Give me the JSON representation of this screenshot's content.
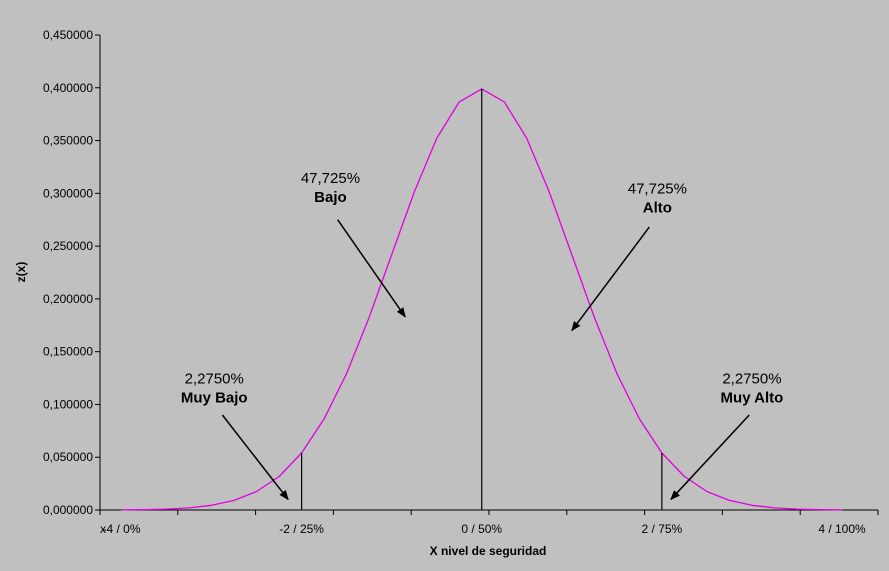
{
  "chart_data": {
    "type": "line",
    "xlabel": "X nivel de seguridad",
    "ylabel": "z(x)",
    "xlim": [
      -4,
      4
    ],
    "ylim": [
      0,
      0.45
    ],
    "grid": false,
    "legend": "none",
    "y_ticks": [
      {
        "value": 0.0,
        "label": "0,000000"
      },
      {
        "value": 0.05,
        "label": "0,050000"
      },
      {
        "value": 0.1,
        "label": "0,100000"
      },
      {
        "value": 0.15,
        "label": "0,150000"
      },
      {
        "value": 0.2,
        "label": "0,200000"
      },
      {
        "value": 0.25,
        "label": "0,250000"
      },
      {
        "value": 0.3,
        "label": "0,300000"
      },
      {
        "value": 0.35,
        "label": "0,350000"
      },
      {
        "value": 0.4,
        "label": "0,400000"
      },
      {
        "value": 0.45,
        "label": "0,450000"
      }
    ],
    "x_ticks": [
      {
        "value": -4,
        "label": "-4 / 0%"
      },
      {
        "value": -2,
        "label": "-2 / 25%"
      },
      {
        "value": 0,
        "label": "0 / 50%"
      },
      {
        "value": 2,
        "label": "2 / 75%"
      },
      {
        "value": 4,
        "label": "4 / 100%"
      }
    ],
    "axis_stray_label": "x",
    "series": [
      {
        "color": "#e000e0",
        "x": [
          -4,
          -3.75,
          -3.5,
          -3.25,
          -3,
          -2.75,
          -2.5,
          -2.25,
          -2,
          -1.75,
          -1.5,
          -1.25,
          -1,
          -0.75,
          -0.5,
          -0.25,
          0,
          0.25,
          0.5,
          0.75,
          1,
          1.25,
          1.5,
          1.75,
          2,
          2.25,
          2.5,
          2.75,
          3,
          3.25,
          3.5,
          3.75,
          4
        ],
        "y": [
          0.000134,
          0.000353,
          0.000873,
          0.002029,
          0.004432,
          0.009094,
          0.017528,
          0.03174,
          0.053991,
          0.086277,
          0.129518,
          0.182649,
          0.241971,
          0.301137,
          0.352065,
          0.386668,
          0.398942,
          0.386668,
          0.352065,
          0.301137,
          0.241971,
          0.182649,
          0.129518,
          0.086277,
          0.053991,
          0.03174,
          0.017528,
          0.009094,
          0.004432,
          0.002029,
          0.000873,
          0.000353,
          0.000134
        ]
      }
    ],
    "reference_lines": [
      {
        "x": -2,
        "y_top": 0.053991
      },
      {
        "x": 0,
        "y_top": 0.398942
      },
      {
        "x": 2,
        "y_top": 0.053991
      }
    ],
    "annotations": [
      {
        "id": "muy-bajo",
        "percent": "2,2750%",
        "name": "Muy Bajo",
        "text_x": -2.97,
        "text_y": 0.12,
        "arrow_from": [
          -2.88,
          0.09
        ],
        "arrow_to": [
          -2.15,
          0.01
        ]
      },
      {
        "id": "bajo",
        "percent": "47,725%",
        "name": "Bajo",
        "text_x": -1.68,
        "text_y": 0.31,
        "arrow_from": [
          -1.6,
          0.275
        ],
        "arrow_to": [
          -0.85,
          0.183
        ]
      },
      {
        "id": "alto",
        "percent": "47,725%",
        "name": "Alto",
        "text_x": 1.95,
        "text_y": 0.3,
        "arrow_from": [
          1.86,
          0.268
        ],
        "arrow_to": [
          1.0,
          0.17
        ]
      },
      {
        "id": "muy-alto",
        "percent": "2,2750%",
        "name": "Muy Alto",
        "text_x": 3.0,
        "text_y": 0.12,
        "arrow_from": [
          2.97,
          0.09
        ],
        "arrow_to": [
          2.1,
          0.01
        ]
      }
    ]
  }
}
